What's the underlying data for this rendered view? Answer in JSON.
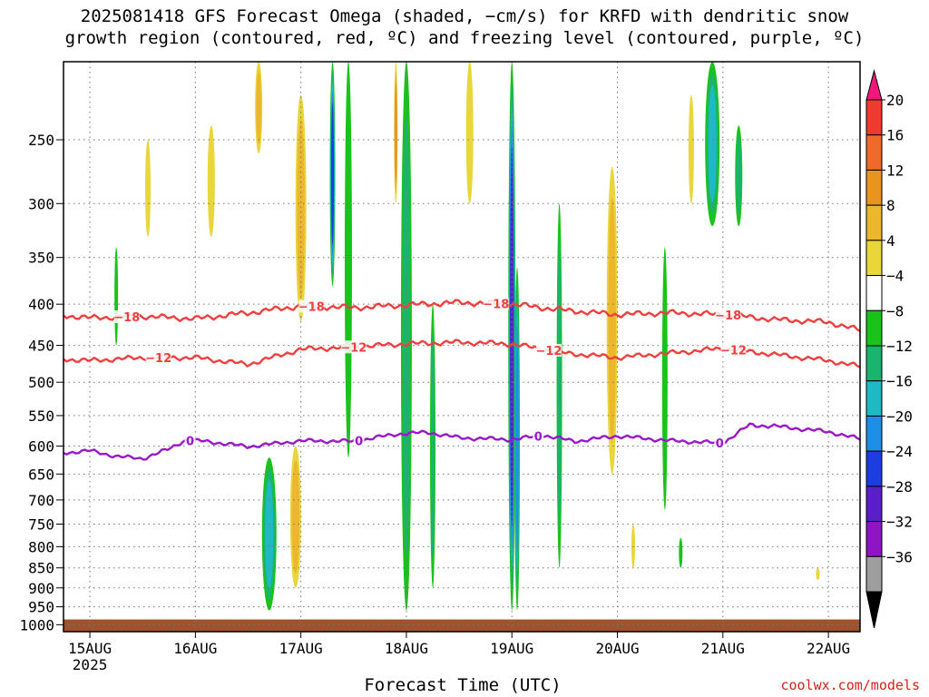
{
  "page": {
    "title": "2025081418 GFS Forecast Omega (shaded, −cm/s) for KRFD with dendritic snow\ngrowth region (contoured, red, ºC) and freezing level (contoured, purple, ºC)",
    "xlabel": "Forecast Time (UTC)",
    "credit": "coolwx.com/models"
  },
  "chart_data": {
    "type": "heatmap",
    "title": "2025081418 GFS Forecast Omega (shaded, −cm/s) for KRFD with dendritic snow growth region (contoured, red, ºC) and freezing level (contoured, purple, ºC)",
    "xlabel": "Forecast Time (UTC)",
    "ylabel": "",
    "x_ticks": [
      {
        "label": "15AUG",
        "sub": "2025",
        "day": 15
      },
      {
        "label": "16AUG",
        "day": 16
      },
      {
        "label": "17AUG",
        "day": 17
      },
      {
        "label": "18AUG",
        "day": 18
      },
      {
        "label": "19AUG",
        "day": 19
      },
      {
        "label": "20AUG",
        "day": 20
      },
      {
        "label": "21AUG",
        "day": 21
      },
      {
        "label": "22AUG",
        "day": 22
      }
    ],
    "xlim_day": [
      14.75,
      22.3
    ],
    "y_ticks": [
      250,
      300,
      350,
      400,
      450,
      500,
      550,
      600,
      650,
      700,
      750,
      800,
      850,
      900,
      950,
      1000
    ],
    "ylim_hPa": [
      200,
      1020
    ],
    "y_scale": "log-pressure",
    "grid": "dotted",
    "colorbar": {
      "labels": [
        "20",
        "16",
        "12",
        "8",
        "4",
        "−4",
        "−8",
        "−12",
        "−16",
        "−20",
        "−24",
        "−28",
        "−32",
        "−36"
      ],
      "bins": [
        {
          "color": "#f0177d"
        },
        {
          "color": "#ef3a30"
        },
        {
          "color": "#ef6a2a"
        },
        {
          "color": "#e8951f"
        },
        {
          "color": "#ecb72c"
        },
        {
          "color": "#e8d63b"
        },
        {
          "color": "#ffffff"
        },
        {
          "color": "#19c319"
        },
        {
          "color": "#19b46e"
        },
        {
          "color": "#1fb9c4"
        },
        {
          "color": "#1e8fe6"
        },
        {
          "color": "#1c3ee0"
        },
        {
          "color": "#5a1fc9"
        },
        {
          "color": "#8e14c4"
        },
        {
          "color": "#9e9e9e"
        },
        {
          "color": "#000000"
        }
      ]
    },
    "ground_color": "#a0522d",
    "contours": [
      {
        "name": "-18",
        "color": "#ef4040",
        "points": [
          [
            14.75,
            413
          ],
          [
            15.0,
            416
          ],
          [
            15.5,
            414
          ],
          [
            16.0,
            417
          ],
          [
            16.5,
            410
          ],
          [
            17.0,
            402
          ],
          [
            17.5,
            404
          ],
          [
            18.0,
            401
          ],
          [
            18.5,
            398
          ],
          [
            19.0,
            400
          ],
          [
            19.5,
            407
          ],
          [
            20.0,
            412
          ],
          [
            20.5,
            410
          ],
          [
            21.0,
            412
          ],
          [
            21.5,
            418
          ],
          [
            22.0,
            421
          ],
          [
            22.3,
            431
          ]
        ],
        "labels": [
          [
            15.35,
            "−18"
          ],
          [
            17.1,
            "−18"
          ],
          [
            18.85,
            "−18"
          ],
          [
            21.05,
            "−18"
          ]
        ]
      },
      {
        "name": "-12",
        "color": "#ef4040",
        "points": [
          [
            14.75,
            468
          ],
          [
            15.0,
            470
          ],
          [
            15.5,
            466
          ],
          [
            16.0,
            466
          ],
          [
            16.5,
            475
          ],
          [
            17.0,
            455
          ],
          [
            17.5,
            452
          ],
          [
            18.0,
            448
          ],
          [
            18.5,
            446
          ],
          [
            19.0,
            448
          ],
          [
            19.5,
            460
          ],
          [
            20.0,
            466
          ],
          [
            20.5,
            460
          ],
          [
            21.0,
            454
          ],
          [
            21.5,
            462
          ],
          [
            22.0,
            470
          ],
          [
            22.3,
            478
          ]
        ],
        "labels": [
          [
            15.65,
            "−12"
          ],
          [
            17.5,
            "−12"
          ],
          [
            19.35,
            "−12"
          ],
          [
            21.1,
            "−12"
          ]
        ]
      },
      {
        "name": "0",
        "color": "#9a18c8",
        "points": [
          [
            14.75,
            612
          ],
          [
            15.0,
            608
          ],
          [
            15.25,
            618
          ],
          [
            15.5,
            622
          ],
          [
            15.75,
            605
          ],
          [
            15.9,
            590
          ],
          [
            16.1,
            592
          ],
          [
            16.5,
            601
          ],
          [
            17.0,
            591
          ],
          [
            17.5,
            592
          ],
          [
            17.9,
            580
          ],
          [
            18.2,
            577
          ],
          [
            18.5,
            586
          ],
          [
            19.0,
            589
          ],
          [
            19.3,
            582
          ],
          [
            19.6,
            592
          ],
          [
            20.0,
            583
          ],
          [
            20.5,
            591
          ],
          [
            21.0,
            595
          ],
          [
            21.25,
            565
          ],
          [
            21.5,
            567
          ],
          [
            22.0,
            576
          ],
          [
            22.3,
            588
          ]
        ],
        "labels": [
          [
            15.95,
            "0"
          ],
          [
            17.55,
            "0"
          ],
          [
            19.25,
            "0"
          ],
          [
            20.97,
            "0"
          ]
        ]
      }
    ],
    "omega_features": [
      {
        "x": 17.0,
        "p1": 220,
        "p2": 420,
        "w": 6,
        "v": 12
      },
      {
        "x": 16.15,
        "p1": 240,
        "p2": 330,
        "w": 4,
        "v": 8
      },
      {
        "x": 15.55,
        "p1": 250,
        "p2": 330,
        "w": 3,
        "v": 6
      },
      {
        "x": 16.6,
        "p1": 200,
        "p2": 260,
        "w": 4,
        "v": 10
      },
      {
        "x": 16.7,
        "p1": 620,
        "p2": 960,
        "w": 8,
        "v": -14
      },
      {
        "x": 16.95,
        "p1": 600,
        "p2": 900,
        "w": 6,
        "v": 12
      },
      {
        "x": 17.3,
        "p1": 200,
        "p2": 380,
        "w": 3,
        "v": -22
      },
      {
        "x": 17.45,
        "p1": 200,
        "p2": 620,
        "w": 4,
        "v": -8
      },
      {
        "x": 18.0,
        "p1": 200,
        "p2": 960,
        "w": 6,
        "v": -10
      },
      {
        "x": 17.9,
        "p1": 200,
        "p2": 300,
        "w": 2,
        "v": 14
      },
      {
        "x": 18.25,
        "p1": 400,
        "p2": 900,
        "w": 3,
        "v": -12
      },
      {
        "x": 18.6,
        "p1": 200,
        "p2": 300,
        "w": 4,
        "v": 8
      },
      {
        "x": 19.0,
        "p1": 200,
        "p2": 960,
        "w": 4,
        "v": -26
      },
      {
        "x": 19.05,
        "p1": 360,
        "p2": 960,
        "w": 3,
        "v": -18
      },
      {
        "x": 19.45,
        "p1": 300,
        "p2": 850,
        "w": 3,
        "v": -10
      },
      {
        "x": 19.95,
        "p1": 270,
        "p2": 650,
        "w": 6,
        "v": 10
      },
      {
        "x": 20.45,
        "p1": 340,
        "p2": 720,
        "w": 3,
        "v": -8
      },
      {
        "x": 20.7,
        "p1": 220,
        "p2": 300,
        "w": 3,
        "v": 6
      },
      {
        "x": 20.9,
        "p1": 200,
        "p2": 320,
        "w": 8,
        "v": -14
      },
      {
        "x": 21.15,
        "p1": 240,
        "p2": 320,
        "w": 4,
        "v": -10
      },
      {
        "x": 15.25,
        "p1": 340,
        "p2": 450,
        "w": 2,
        "v": -6
      },
      {
        "x": 20.15,
        "p1": 750,
        "p2": 850,
        "w": 2,
        "v": 6
      },
      {
        "x": 20.6,
        "p1": 780,
        "p2": 850,
        "w": 2,
        "v": -6
      },
      {
        "x": 21.9,
        "p1": 850,
        "p2": 880,
        "w": 2,
        "v": 6
      }
    ]
  }
}
